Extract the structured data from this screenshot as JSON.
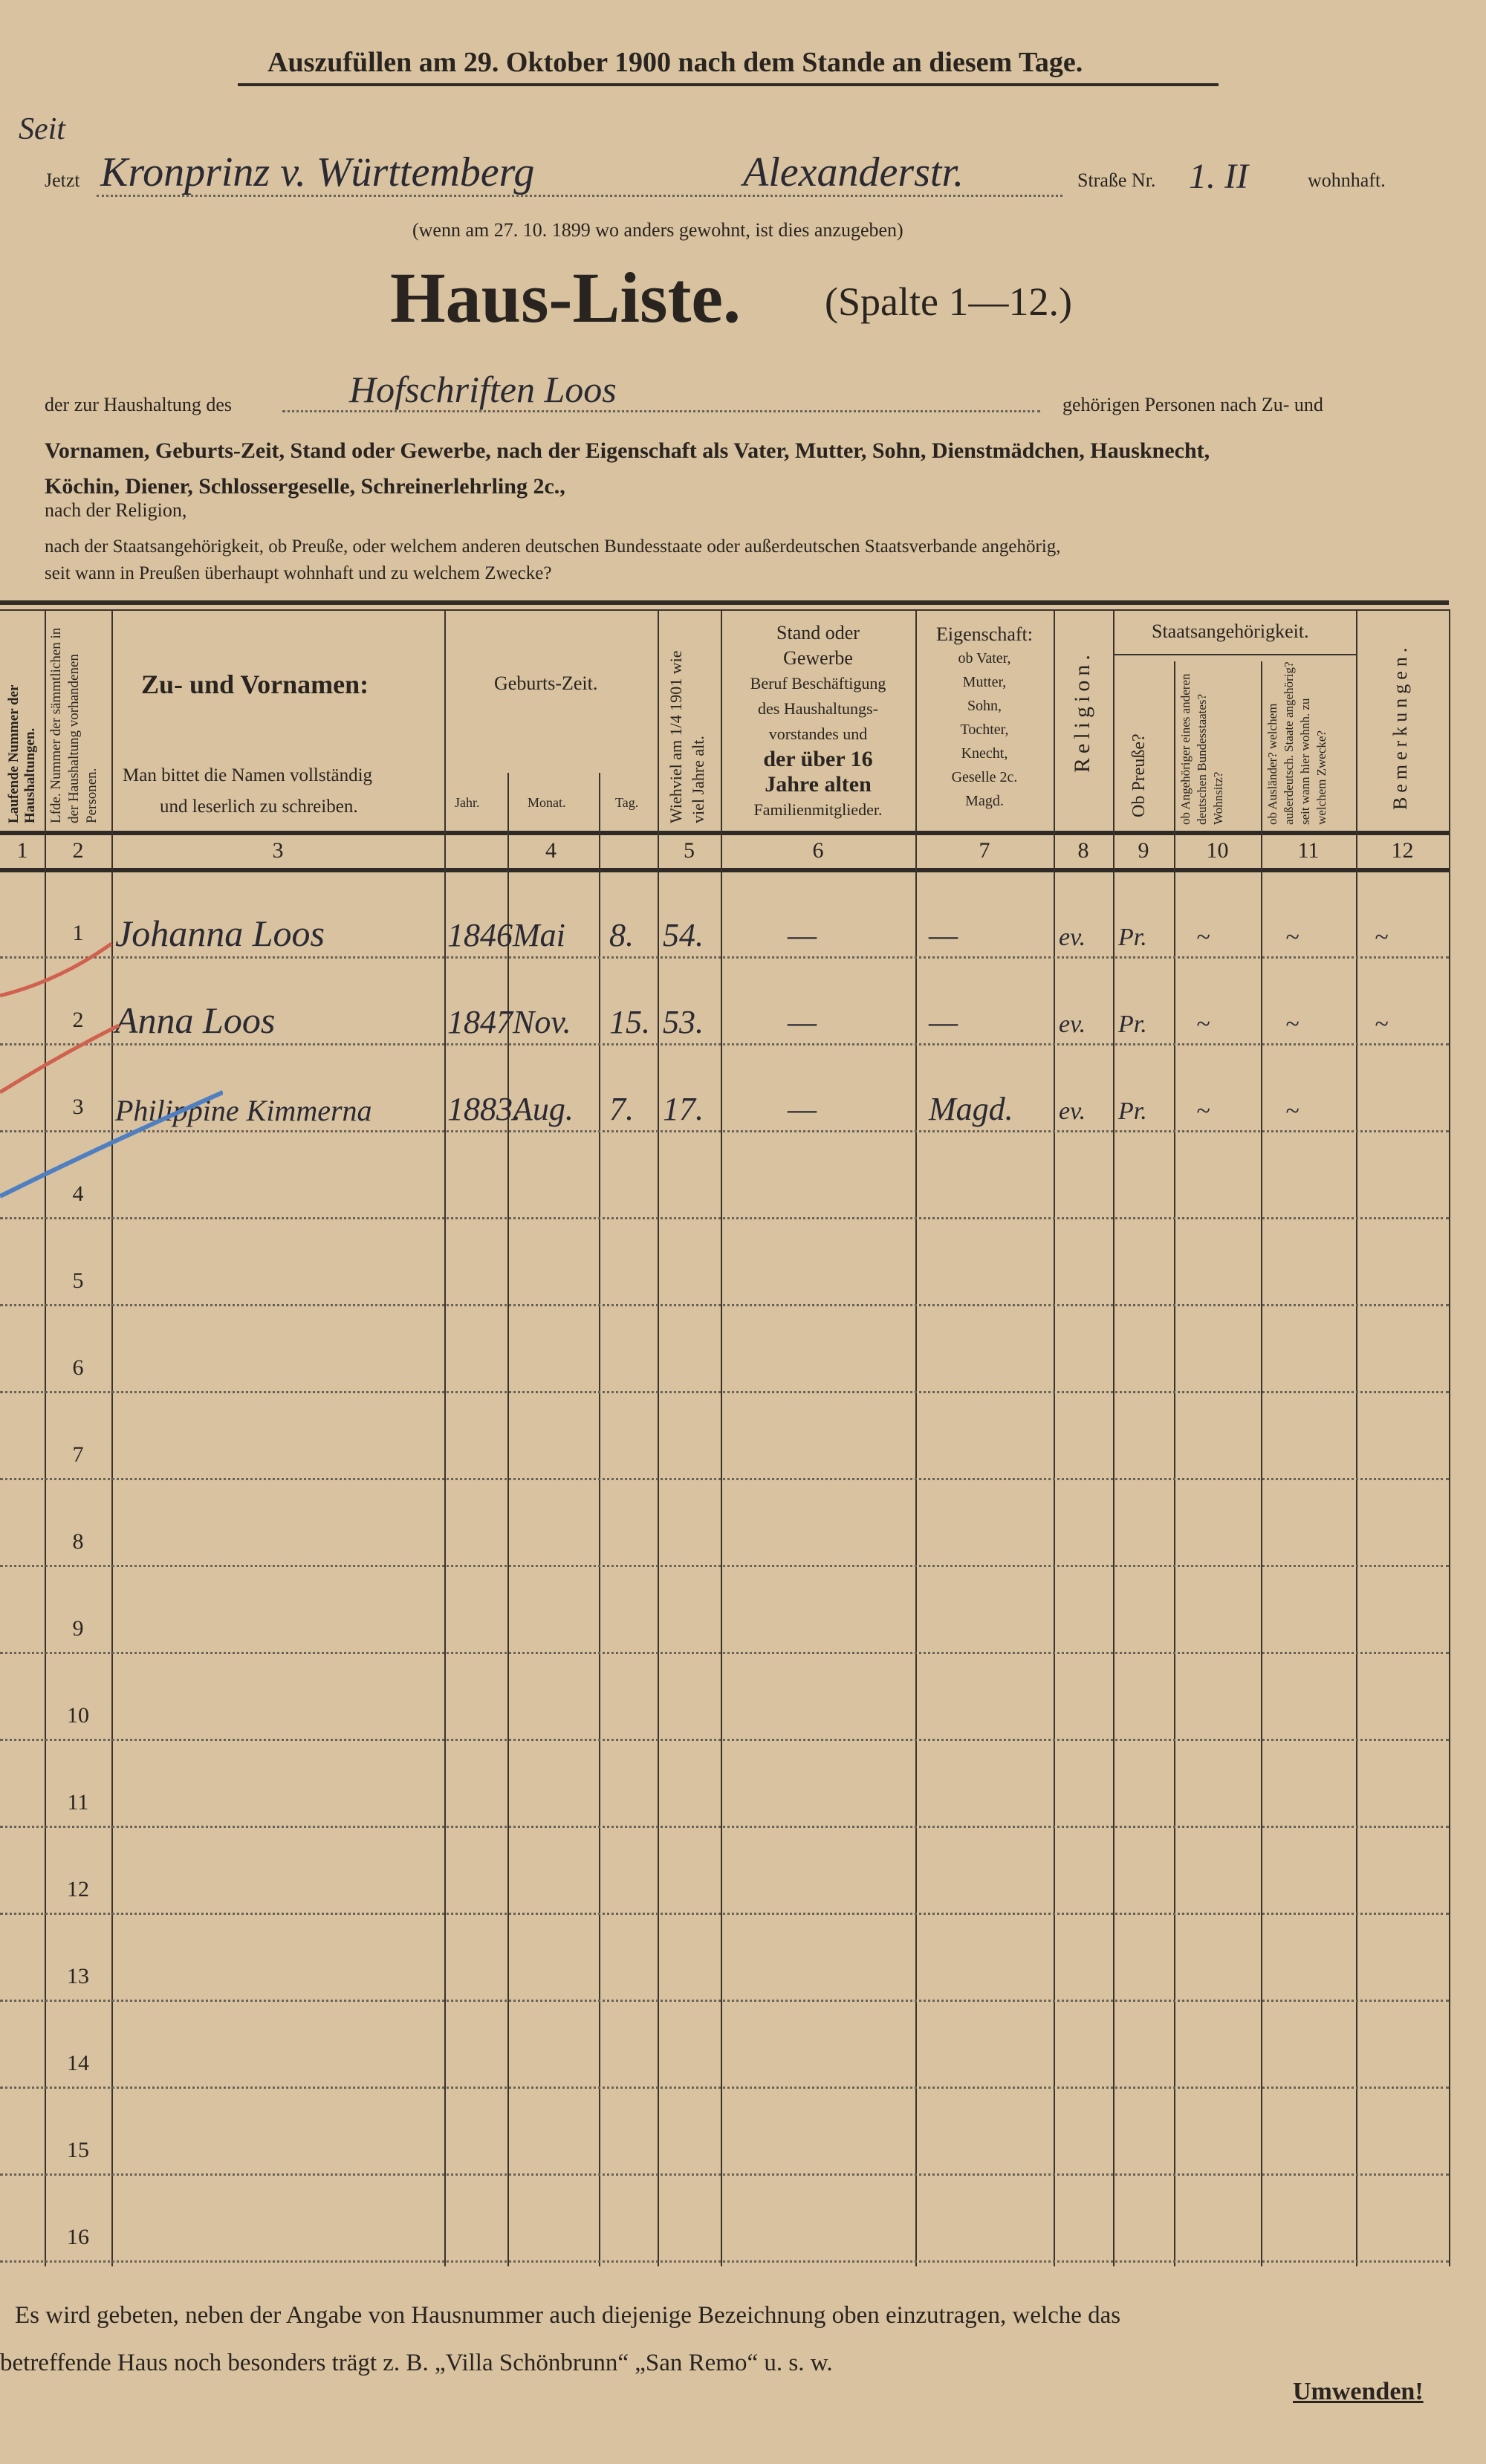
{
  "header": {
    "instruction": "Auszufüllen am 29. Oktober 1900 nach dem Stande an diesem Tage.",
    "jetzt_label": "Jetzt",
    "jetzt_correction": "Seit",
    "address_value": "Kronprinz v. Württemberg",
    "street_value": "Alexanderstr.",
    "strasse_label": "Straße Nr.",
    "number_value": "1. II",
    "wohnhaft_label": "wohnhaft.",
    "note": "(wenn am 27. 10. 1899 wo anders gewohnt, ist dies anzugeben)",
    "title": "Haus-Liste.",
    "title_sub": "(Spalte 1—12.)",
    "household_prefix": "der zur Haushaltung des",
    "household_value": "Hofschriften Loos",
    "household_suffix": "gehörigen Personen nach Zu- und",
    "desc_line1": "Vornamen, Geburts-Zeit, Stand oder Gewerbe, nach der Eigenschaft als Vater, Mutter, Sohn, Dienstmädchen, Hausknecht,",
    "desc_line2": "Köchin, Diener, Schlossergeselle, Schreinerlehrling 2c.,",
    "desc_line3": "nach der Religion,",
    "desc_line4": "nach der Staatsangehörigkeit, ob Preuße, oder welchem anderen deutschen Bundesstaate oder außerdeutschen Staatsverbande angehörig,",
    "desc_line5": "seit wann in Preußen überhaupt wohnhaft und zu welchem Zwecke?"
  },
  "table": {
    "col1": "Laufende Nummer der Haushaltungen.",
    "col2": "Lfde. Nummer der sämmtlichen in der Haushaltung vorhandenen Personen.",
    "col3_title": "Zu- und Vornamen:",
    "col3_note1": "Man bittet die Namen vollständig",
    "col3_note2": "und leserlich zu schreiben.",
    "col4_title": "Geburts-Zeit.",
    "col4_jahr": "Jahr.",
    "col4_monat": "Monat.",
    "col4_tag": "Tag.",
    "col5": "Wiehviel am 1/4 1901 wie viel Jahre alt.",
    "col6_a": "Stand oder",
    "col6_b": "Gewerbe",
    "col6_c": "Beruf Beschäftigung",
    "col6_d": "des Haushaltungs-",
    "col6_e": "vorstandes und",
    "col6_f": "der über 16",
    "col6_g": "Jahre alten",
    "col6_h": "Familienmitglieder.",
    "col7_a": "Eigenschaft:",
    "col7_b": "ob Vater,",
    "col7_c": "Mutter,",
    "col7_d": "Sohn,",
    "col7_e": "Tochter,",
    "col7_f": "Knecht,",
    "col7_g": "Geselle 2c.",
    "col7_h": "Magd.",
    "col8": "Religion.",
    "staats": "Staatsangehörigkeit.",
    "col9": "Ob Preuße?",
    "col10": "ob Angehöriger eines anderen deutschen Bundesstaates? Wohnsitz?",
    "col11": "ob Ausländer? welchem außerdeutsch. Staate angehörig? seit wann hier wohnh. zu welchem Zwecke?",
    "col12": "Bemerkungen.",
    "col_numbers": [
      "1",
      "2",
      "3",
      "4",
      "5",
      "6",
      "7",
      "8",
      "9",
      "10",
      "11",
      "12"
    ],
    "rows": [
      {
        "nr": "1",
        "name": "Johanna Loos",
        "jahr": "1846",
        "monat": "Mai",
        "tag": "8.",
        "alter": "54.",
        "stand": "—",
        "eigenschaft": "—",
        "religion": "ev.",
        "preusse": "Pr.",
        "c10": "~",
        "c11": "~",
        "c12": "~"
      },
      {
        "nr": "2",
        "name": "Anna Loos",
        "jahr": "1847",
        "monat": "Nov.",
        "tag": "15.",
        "alter": "53.",
        "stand": "—",
        "eigenschaft": "—",
        "religion": "ev.",
        "preusse": "Pr.",
        "c10": "~",
        "c11": "~",
        "c12": "~"
      },
      {
        "nr": "3",
        "name": "Philippine Kimmerna",
        "jahr": "1883.",
        "monat": "Aug.",
        "tag": "7.",
        "alter": "17.",
        "stand": "—",
        "eigenschaft": "Magd.",
        "religion": "ev.",
        "preusse": "Pr.",
        "c10": "~",
        "c11": "~",
        "c12": ""
      },
      {
        "nr": "4"
      },
      {
        "nr": "5"
      },
      {
        "nr": "6"
      },
      {
        "nr": "7"
      },
      {
        "nr": "8"
      },
      {
        "nr": "9"
      },
      {
        "nr": "10"
      },
      {
        "nr": "11"
      },
      {
        "nr": "12"
      },
      {
        "nr": "13"
      },
      {
        "nr": "14"
      },
      {
        "nr": "15"
      },
      {
        "nr": "16"
      }
    ]
  },
  "footer": {
    "line1": "Es wird gebeten, neben der Angabe von Hausnummer auch diejenige Bezeichnung oben einzutragen, welche das",
    "line2": "betreffende Haus noch besonders trägt z. B. „Villa Schönbrunn“ „San Remo“ u. s. w.",
    "turn": "Umwenden!"
  },
  "colors": {
    "paper": "#d8c29f",
    "ink": "#2a2420",
    "red_pencil": "#d0604f",
    "blue_pencil": "#4f7fc0"
  }
}
